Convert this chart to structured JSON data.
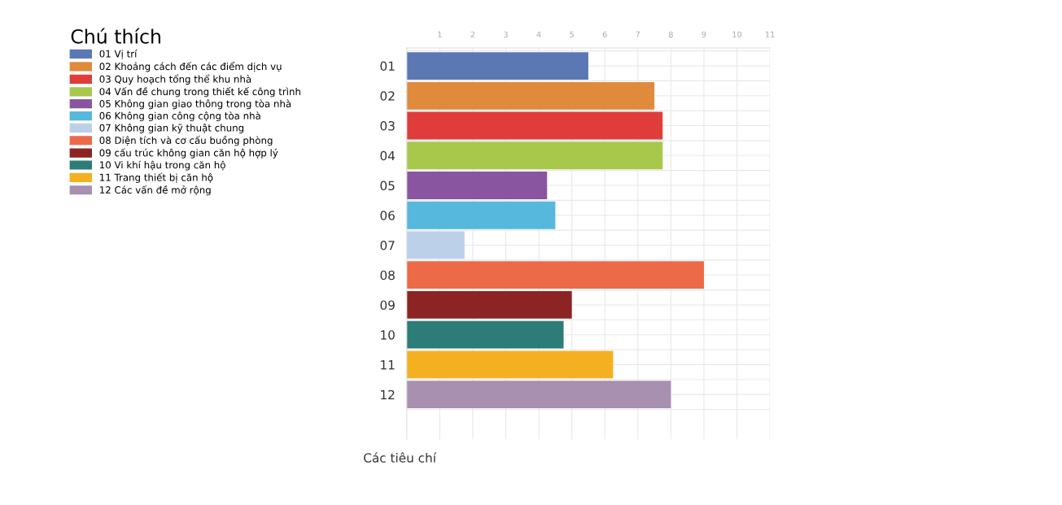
{
  "chart_data": {
    "type": "bar",
    "orientation": "horizontal",
    "ylabel": "Các tiêu chí",
    "legend_title": "Chú thích",
    "legend": "left",
    "categories": [
      "01",
      "02",
      "03",
      "04",
      "05",
      "06",
      "07",
      "08",
      "09",
      "10",
      "11",
      "12"
    ],
    "series": [
      {
        "name": "01 Vị trí",
        "color": "#5b78b4",
        "values": [
          5.5,
          null,
          null,
          null,
          null,
          null,
          null,
          null,
          null,
          null,
          null,
          null
        ]
      },
      {
        "name": "02 Khoảng cách đến các điểm dịch vụ",
        "color": "#e08a3c",
        "values": [
          null,
          7.5,
          null,
          null,
          null,
          null,
          null,
          null,
          null,
          null,
          null,
          null
        ]
      },
      {
        "name": "03 Quy hoạch tổng thể khu nhà",
        "color": "#e03c3c",
        "values": [
          null,
          null,
          7.75,
          null,
          null,
          null,
          null,
          null,
          null,
          null,
          null,
          null
        ]
      },
      {
        "name": "04 Vấn đề chung trong thiết kế công trình",
        "color": "#a8c84c",
        "values": [
          null,
          null,
          null,
          7.75,
          null,
          null,
          null,
          null,
          null,
          null,
          null,
          null
        ]
      },
      {
        "name": "05 Không gian giao thông trong tòa nhà",
        "color": "#8a55a0",
        "values": [
          null,
          null,
          null,
          null,
          4.25,
          null,
          null,
          null,
          null,
          null,
          null,
          null
        ]
      },
      {
        "name": "06 Không gian công cộng tòa nhà",
        "color": "#55b8dc",
        "values": [
          null,
          null,
          null,
          null,
          null,
          4.5,
          null,
          null,
          null,
          null,
          null,
          null
        ]
      },
      {
        "name": "07 Không gian kỹ thuật chung",
        "color": "#bcd0ea",
        "values": [
          null,
          null,
          null,
          null,
          null,
          null,
          1.75,
          null,
          null,
          null,
          null,
          null
        ]
      },
      {
        "name": "08 Diện tích và cơ cấu buồng phòng",
        "color": "#ec6a48",
        "values": [
          null,
          null,
          null,
          null,
          null,
          null,
          null,
          9.0,
          null,
          null,
          null,
          null
        ]
      },
      {
        "name": "09 cấu trúc không gian căn hộ hợp lý",
        "color": "#8c2424",
        "values": [
          null,
          null,
          null,
          null,
          null,
          null,
          null,
          null,
          5.0,
          null,
          null,
          null
        ]
      },
      {
        "name": "10 Vi khí hậu trong căn hộ",
        "color": "#2c7c78",
        "values": [
          null,
          null,
          null,
          null,
          null,
          null,
          null,
          null,
          null,
          4.75,
          null,
          null
        ]
      },
      {
        "name": "11 Trang thiết bị căn hộ",
        "color": "#f4b020",
        "values": [
          null,
          null,
          null,
          null,
          null,
          null,
          null,
          null,
          null,
          null,
          6.25,
          null
        ]
      },
      {
        "name": "12 Các vấn đề mở rộng",
        "color": "#a890b0",
        "values": [
          null,
          null,
          null,
          null,
          null,
          null,
          null,
          null,
          null,
          null,
          null,
          8.0
        ]
      }
    ],
    "xlim": [
      0,
      11
    ],
    "xticks": [
      1,
      2,
      3,
      4,
      5,
      6,
      7,
      8,
      9,
      10,
      11
    ],
    "grid": true
  }
}
